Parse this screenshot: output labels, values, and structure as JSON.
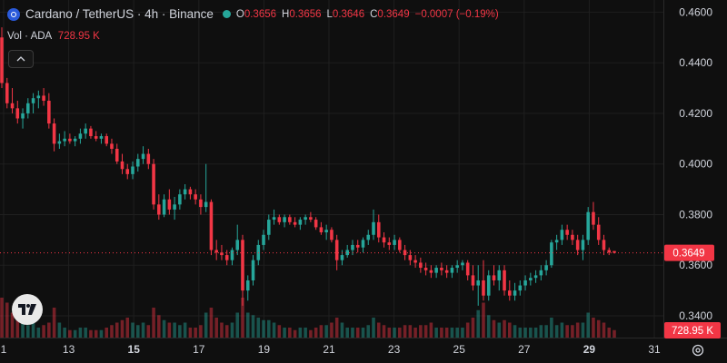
{
  "header": {
    "symbol_title": "Cardano / TetherUS · 4h · Binance",
    "ohlc": [
      {
        "key": "O",
        "value": "0.3656"
      },
      {
        "key": "H",
        "value": "0.3656"
      },
      {
        "key": "L",
        "value": "0.3646"
      },
      {
        "key": "C",
        "value": "0.3649"
      }
    ],
    "change": "−0.0007 (−0.19%)"
  },
  "volume_legend": {
    "label": "Vol · ADA",
    "value": "728.95 K"
  },
  "price_badge": "0.3649",
  "volume_badge": "728.95 K",
  "colors": {
    "up": "#26a69a",
    "down": "#f23645",
    "background": "#0f0f0f",
    "grid": "#1f1f1f",
    "text": "#d1d4dc"
  },
  "chart_data": {
    "type": "candlestick",
    "y_ticks": [
      "0.4600",
      "0.4400",
      "0.4200",
      "0.4000",
      "0.3800",
      "0.3600",
      "0.3400"
    ],
    "y_tick_values": [
      0.46,
      0.44,
      0.42,
      0.4,
      0.38,
      0.36,
      0.34
    ],
    "ylim": [
      0.3314,
      0.4648
    ],
    "x_ticks": [
      {
        "label": "1",
        "bold": false
      },
      {
        "label": "13",
        "bold": false
      },
      {
        "label": "15",
        "bold": true
      },
      {
        "label": "17",
        "bold": false
      },
      {
        "label": "19",
        "bold": false
      },
      {
        "label": "21",
        "bold": false
      },
      {
        "label": "23",
        "bold": false
      },
      {
        "label": "25",
        "bold": false
      },
      {
        "label": "27",
        "bold": false
      },
      {
        "label": "29",
        "bold": true
      },
      {
        "label": "31",
        "bold": false
      }
    ],
    "last_close": 0.3649,
    "candles": [
      [
        0.45,
        0.454,
        0.43,
        0.432,
        0.8
      ],
      [
        0.432,
        0.434,
        0.422,
        0.424,
        0.7
      ],
      [
        0.424,
        0.43,
        0.42,
        0.422,
        0.5
      ],
      [
        0.422,
        0.425,
        0.416,
        0.418,
        0.4
      ],
      [
        0.418,
        0.422,
        0.414,
        0.42,
        0.3
      ],
      [
        0.42,
        0.426,
        0.418,
        0.424,
        0.25
      ],
      [
        0.424,
        0.428,
        0.42,
        0.426,
        0.3
      ],
      [
        0.426,
        0.429,
        0.422,
        0.427,
        0.2
      ],
      [
        0.427,
        0.43,
        0.423,
        0.425,
        0.25
      ],
      [
        0.425,
        0.428,
        0.414,
        0.416,
        0.3
      ],
      [
        0.416,
        0.418,
        0.405,
        0.408,
        0.6
      ],
      [
        0.408,
        0.412,
        0.406,
        0.409,
        0.3
      ],
      [
        0.409,
        0.413,
        0.407,
        0.41,
        0.2
      ],
      [
        0.41,
        0.412,
        0.408,
        0.409,
        0.15
      ],
      [
        0.409,
        0.411,
        0.407,
        0.41,
        0.15
      ],
      [
        0.41,
        0.414,
        0.408,
        0.412,
        0.2
      ],
      [
        0.412,
        0.416,
        0.41,
        0.414,
        0.2
      ],
      [
        0.414,
        0.415,
        0.41,
        0.411,
        0.15
      ],
      [
        0.411,
        0.413,
        0.409,
        0.41,
        0.15
      ],
      [
        0.41,
        0.412,
        0.408,
        0.411,
        0.15
      ],
      [
        0.411,
        0.412,
        0.407,
        0.408,
        0.2
      ],
      [
        0.408,
        0.41,
        0.404,
        0.406,
        0.25
      ],
      [
        0.406,
        0.408,
        0.4,
        0.401,
        0.3
      ],
      [
        0.401,
        0.404,
        0.396,
        0.398,
        0.35
      ],
      [
        0.398,
        0.4,
        0.394,
        0.396,
        0.4
      ],
      [
        0.396,
        0.401,
        0.394,
        0.399,
        0.3
      ],
      [
        0.399,
        0.404,
        0.397,
        0.402,
        0.25
      ],
      [
        0.402,
        0.407,
        0.4,
        0.404,
        0.3
      ],
      [
        0.404,
        0.406,
        0.398,
        0.4,
        0.25
      ],
      [
        0.4,
        0.402,
        0.382,
        0.384,
        0.6
      ],
      [
        0.384,
        0.388,
        0.378,
        0.38,
        0.45
      ],
      [
        0.38,
        0.388,
        0.379,
        0.386,
        0.35
      ],
      [
        0.386,
        0.39,
        0.38,
        0.382,
        0.3
      ],
      [
        0.382,
        0.387,
        0.378,
        0.384,
        0.3
      ],
      [
        0.384,
        0.39,
        0.382,
        0.388,
        0.25
      ],
      [
        0.388,
        0.392,
        0.386,
        0.39,
        0.3
      ],
      [
        0.39,
        0.391,
        0.386,
        0.388,
        0.2
      ],
      [
        0.388,
        0.39,
        0.384,
        0.386,
        0.2
      ],
      [
        0.386,
        0.388,
        0.38,
        0.383,
        0.25
      ],
      [
        0.383,
        0.4,
        0.381,
        0.385,
        0.5
      ],
      [
        0.385,
        0.386,
        0.364,
        0.366,
        0.6
      ],
      [
        0.366,
        0.37,
        0.362,
        0.365,
        0.4
      ],
      [
        0.365,
        0.368,
        0.362,
        0.364,
        0.3
      ],
      [
        0.364,
        0.366,
        0.36,
        0.362,
        0.25
      ],
      [
        0.362,
        0.367,
        0.36,
        0.366,
        0.3
      ],
      [
        0.366,
        0.376,
        0.364,
        0.37,
        0.5
      ],
      [
        0.37,
        0.372,
        0.344,
        0.35,
        0.8
      ],
      [
        0.35,
        0.356,
        0.346,
        0.354,
        0.5
      ],
      [
        0.354,
        0.364,
        0.352,
        0.362,
        0.45
      ],
      [
        0.362,
        0.37,
        0.36,
        0.368,
        0.4
      ],
      [
        0.368,
        0.374,
        0.366,
        0.372,
        0.35
      ],
      [
        0.372,
        0.38,
        0.37,
        0.378,
        0.35
      ],
      [
        0.378,
        0.382,
        0.376,
        0.379,
        0.3
      ],
      [
        0.379,
        0.38,
        0.376,
        0.377,
        0.25
      ],
      [
        0.377,
        0.38,
        0.375,
        0.379,
        0.2
      ],
      [
        0.379,
        0.38,
        0.376,
        0.377,
        0.2
      ],
      [
        0.377,
        0.379,
        0.375,
        0.376,
        0.15
      ],
      [
        0.376,
        0.379,
        0.374,
        0.378,
        0.2
      ],
      [
        0.378,
        0.38,
        0.376,
        0.379,
        0.2
      ],
      [
        0.379,
        0.381,
        0.377,
        0.378,
        0.15
      ],
      [
        0.378,
        0.379,
        0.374,
        0.375,
        0.2
      ],
      [
        0.375,
        0.377,
        0.372,
        0.373,
        0.25
      ],
      [
        0.373,
        0.376,
        0.37,
        0.374,
        0.25
      ],
      [
        0.374,
        0.375,
        0.369,
        0.37,
        0.3
      ],
      [
        0.37,
        0.372,
        0.358,
        0.362,
        0.4
      ],
      [
        0.362,
        0.366,
        0.36,
        0.364,
        0.3
      ],
      [
        0.364,
        0.368,
        0.363,
        0.366,
        0.2
      ],
      [
        0.366,
        0.37,
        0.364,
        0.368,
        0.2
      ],
      [
        0.368,
        0.37,
        0.365,
        0.367,
        0.2
      ],
      [
        0.367,
        0.371,
        0.365,
        0.37,
        0.2
      ],
      [
        0.37,
        0.374,
        0.368,
        0.372,
        0.25
      ],
      [
        0.372,
        0.382,
        0.37,
        0.377,
        0.4
      ],
      [
        0.377,
        0.38,
        0.369,
        0.371,
        0.3
      ],
      [
        0.371,
        0.373,
        0.367,
        0.369,
        0.25
      ],
      [
        0.369,
        0.371,
        0.366,
        0.368,
        0.2
      ],
      [
        0.368,
        0.372,
        0.366,
        0.37,
        0.2
      ],
      [
        0.37,
        0.371,
        0.365,
        0.366,
        0.2
      ],
      [
        0.366,
        0.368,
        0.362,
        0.364,
        0.25
      ],
      [
        0.364,
        0.366,
        0.36,
        0.362,
        0.25
      ],
      [
        0.362,
        0.364,
        0.359,
        0.361,
        0.2
      ],
      [
        0.361,
        0.363,
        0.357,
        0.359,
        0.25
      ],
      [
        0.359,
        0.361,
        0.356,
        0.358,
        0.25
      ],
      [
        0.358,
        0.36,
        0.355,
        0.357,
        0.3
      ],
      [
        0.357,
        0.36,
        0.355,
        0.359,
        0.2
      ],
      [
        0.359,
        0.361,
        0.356,
        0.358,
        0.2
      ],
      [
        0.358,
        0.36,
        0.355,
        0.357,
        0.2
      ],
      [
        0.357,
        0.36,
        0.355,
        0.359,
        0.2
      ],
      [
        0.359,
        0.362,
        0.357,
        0.36,
        0.2
      ],
      [
        0.36,
        0.362,
        0.358,
        0.361,
        0.2
      ],
      [
        0.361,
        0.362,
        0.354,
        0.356,
        0.3
      ],
      [
        0.356,
        0.36,
        0.35,
        0.352,
        0.4
      ],
      [
        0.352,
        0.36,
        0.344,
        0.354,
        0.55
      ],
      [
        0.354,
        0.362,
        0.346,
        0.348,
        0.7
      ],
      [
        0.348,
        0.358,
        0.346,
        0.356,
        0.45
      ],
      [
        0.356,
        0.36,
        0.352,
        0.354,
        0.35
      ],
      [
        0.354,
        0.36,
        0.35,
        0.358,
        0.3
      ],
      [
        0.358,
        0.36,
        0.348,
        0.35,
        0.35
      ],
      [
        0.35,
        0.354,
        0.346,
        0.348,
        0.3
      ],
      [
        0.348,
        0.353,
        0.346,
        0.35,
        0.25
      ],
      [
        0.35,
        0.354,
        0.348,
        0.352,
        0.2
      ],
      [
        0.352,
        0.356,
        0.35,
        0.354,
        0.2
      ],
      [
        0.354,
        0.357,
        0.352,
        0.355,
        0.2
      ],
      [
        0.355,
        0.358,
        0.353,
        0.356,
        0.2
      ],
      [
        0.356,
        0.36,
        0.354,
        0.358,
        0.25
      ],
      [
        0.358,
        0.362,
        0.356,
        0.36,
        0.25
      ],
      [
        0.36,
        0.37,
        0.359,
        0.369,
        0.4
      ],
      [
        0.369,
        0.372,
        0.366,
        0.37,
        0.25
      ],
      [
        0.37,
        0.376,
        0.368,
        0.374,
        0.3
      ],
      [
        0.374,
        0.376,
        0.37,
        0.372,
        0.25
      ],
      [
        0.372,
        0.374,
        0.368,
        0.37,
        0.25
      ],
      [
        0.37,
        0.372,
        0.364,
        0.366,
        0.3
      ],
      [
        0.366,
        0.372,
        0.362,
        0.37,
        0.3
      ],
      [
        0.37,
        0.383,
        0.368,
        0.381,
        0.5
      ],
      [
        0.381,
        0.385,
        0.374,
        0.376,
        0.4
      ],
      [
        0.376,
        0.379,
        0.368,
        0.37,
        0.35
      ],
      [
        0.37,
        0.372,
        0.364,
        0.366,
        0.3
      ],
      [
        0.366,
        0.367,
        0.364,
        0.365,
        0.2
      ],
      [
        0.3656,
        0.3656,
        0.3646,
        0.3649,
        0.15
      ]
    ]
  }
}
